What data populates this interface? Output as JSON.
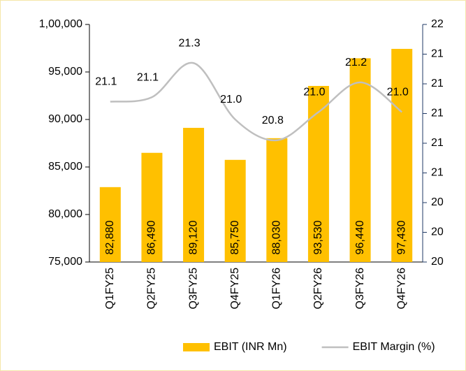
{
  "chart_data": {
    "type": "bar-line",
    "categories": [
      "Q1FY25",
      "Q2FY25",
      "Q3FY25",
      "Q4FY25",
      "Q1FY26",
      "Q2FY26",
      "Q3FY26",
      "Q4FY26"
    ],
    "series": [
      {
        "name": "EBIT (INR Mn)",
        "type": "bar",
        "color": "#FFC000",
        "values": [
          82880,
          86490,
          89120,
          85750,
          88030,
          93530,
          96440,
          97430
        ],
        "value_labels": [
          "82,880",
          "86,490",
          "89,120",
          "85,750",
          "88,030",
          "93,530",
          "96,440",
          "97,430"
        ]
      },
      {
        "name": "EBIT Margin (%)",
        "type": "line",
        "axis": "y2",
        "color": "#BFBFBF",
        "values": [
          21.08,
          21.11,
          21.34,
          20.96,
          20.82,
          21.01,
          21.21,
          21.01
        ],
        "value_labels": [
          "21.1",
          "21.1",
          "21.3",
          "21.0",
          "20.8",
          "21.0",
          "21.2",
          "21.0"
        ]
      }
    ],
    "ylim": [
      75000,
      100000
    ],
    "yticks": [
      {
        "value": 75000,
        "label": "75,000"
      },
      {
        "value": 80000,
        "label": "80,000"
      },
      {
        "value": 85000,
        "label": "85,000"
      },
      {
        "value": 90000,
        "label": "90,000"
      },
      {
        "value": 95000,
        "label": "95,000"
      },
      {
        "value": 100000,
        "label": "1,00,000"
      }
    ],
    "y2lim": [
      20,
      21.6
    ],
    "y2ticks": [
      20,
      {
        "value": 20.2,
        "label": "20"
      },
      {
        "value": 20.4,
        "label": "20"
      },
      {
        "value": 20.6,
        "label": "21"
      },
      {
        "value": 20.8,
        "label": "21"
      },
      {
        "value": 21.0,
        "label": "21"
      },
      {
        "value": 21.2,
        "label": "21"
      },
      {
        "value": 21.4,
        "label": "21"
      },
      {
        "value": 21.6,
        "label": "22"
      }
    ],
    "legend": "bottom"
  }
}
